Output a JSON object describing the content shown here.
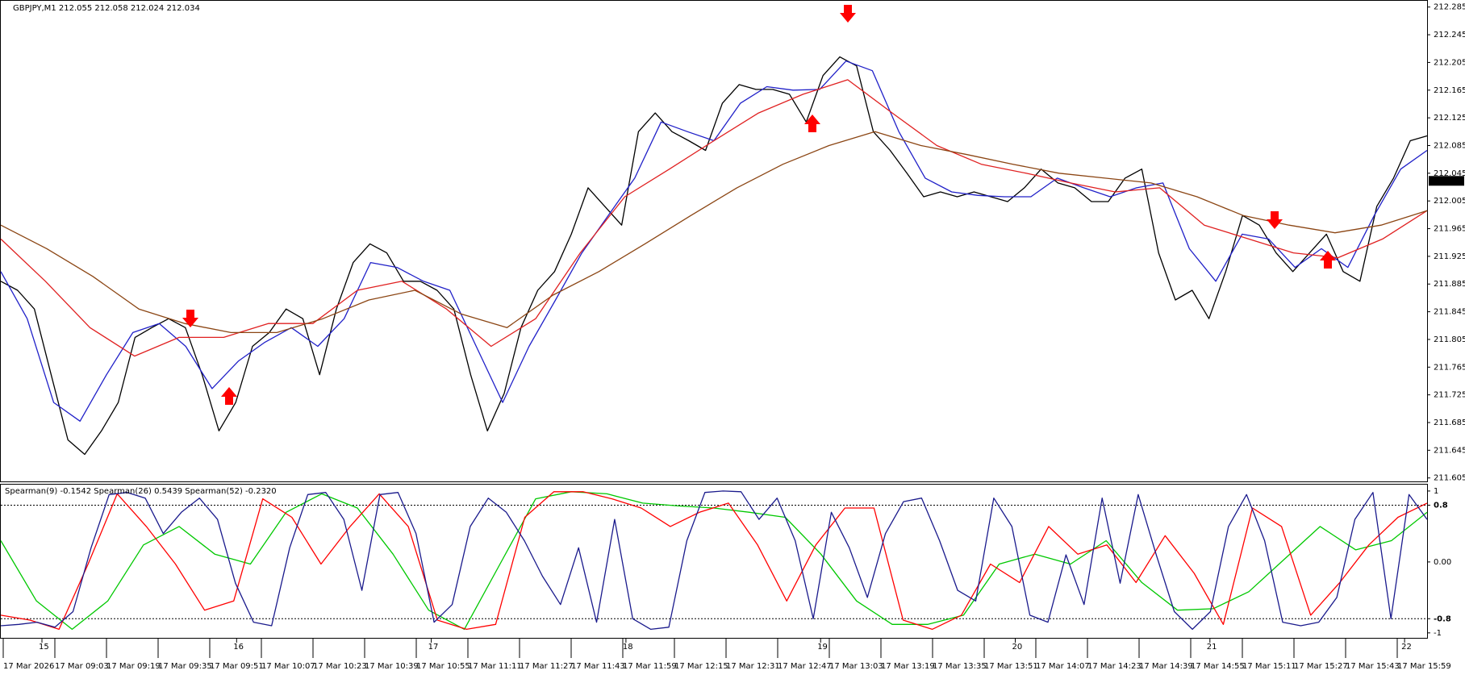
{
  "chart_data": [
    {
      "type": "line",
      "title": "GBPJPY,M1  212.055 212.058 212.024 212.034",
      "last_price": 212.034,
      "ylim": [
        211.6,
        212.294
      ],
      "yticks": [
        212.285,
        212.245,
        212.205,
        212.165,
        212.125,
        212.085,
        212.045,
        212.005,
        211.965,
        211.925,
        211.885,
        211.845,
        211.805,
        211.765,
        211.725,
        211.685,
        211.645,
        211.605
      ],
      "day_labels": [
        "15",
        "16",
        "17",
        "18",
        "19",
        "20",
        "21",
        "22"
      ],
      "time_labels": [
        "17 Mar 2026",
        "17 Mar 09:03",
        "17 Mar 09:19",
        "17 Mar 09:35",
        "17 Mar 09:51",
        "17 Mar 10:07",
        "17 Mar 10:23",
        "17 Mar 10:39",
        "17 Mar 10:55",
        "17 Mar 11:11",
        "17 Mar 11:27",
        "17 Mar 11:43",
        "17 Mar 11:59",
        "17 Mar 12:15",
        "17 Mar 12:31",
        "17 Mar 12:47",
        "17 Mar 13:03",
        "17 Mar 13:19",
        "17 Mar 13:35",
        "17 Mar 13:51",
        "17 Mar 14:07",
        "17 Mar 14:23",
        "17 Mar 14:39",
        "17 Mar 14:55",
        "17 Mar 15:11",
        "17 Mar 15:27",
        "17 Mar 15:43",
        "17 Mar 15:59"
      ],
      "series": [
        {
          "color": "#000000",
          "values": [
            211.889,
            211.876,
            211.849,
            211.754,
            211.66,
            211.639,
            211.673,
            211.714,
            211.808,
            211.822,
            211.835,
            211.822,
            211.754,
            211.673,
            211.714,
            211.795,
            211.815,
            211.849,
            211.835,
            211.754,
            211.849,
            211.916,
            211.943,
            211.93,
            211.889,
            211.889,
            211.876,
            211.849,
            211.754,
            211.673,
            211.727,
            211.822,
            211.876,
            211.903,
            211.957,
            212.024,
            211.997,
            211.97,
            212.105,
            212.132,
            212.105,
            212.092,
            212.078,
            212.146,
            212.173,
            212.166,
            212.166,
            212.159,
            212.119,
            212.186,
            212.213,
            212.2,
            212.105,
            212.078,
            212.045,
            212.011,
            212.018,
            212.011,
            212.018,
            212.011,
            212.004,
            212.024,
            212.051,
            212.031,
            212.024,
            212.004,
            212.004,
            212.038,
            212.051,
            211.93,
            211.862,
            211.876,
            211.835,
            211.903,
            211.984,
            211.97,
            211.93,
            211.903,
            211.93,
            211.957,
            211.903,
            211.889,
            211.997,
            212.038,
            212.092,
            212.099
          ]
        },
        {
          "color": "#2020c8",
          "values": [
            211.903,
            211.835,
            211.714,
            211.687,
            211.754,
            211.815,
            211.828,
            211.795,
            211.734,
            211.774,
            211.801,
            211.822,
            211.795,
            211.835,
            211.916,
            211.909,
            211.889,
            211.876,
            211.795,
            211.714,
            211.795,
            211.862,
            211.93,
            211.984,
            212.038,
            212.119,
            212.105,
            212.092,
            212.146,
            212.17,
            212.165,
            212.166,
            212.207,
            212.193,
            212.105,
            212.038,
            212.018,
            212.013,
            212.011,
            212.011,
            212.038,
            212.024,
            212.011,
            212.024,
            212.031,
            211.936,
            211.889,
            211.957,
            211.95,
            211.909,
            211.936,
            211.909,
            211.984,
            212.051,
            212.078
          ]
        },
        {
          "color": "#e02020",
          "values": [
            211.95,
            211.889,
            211.822,
            211.781,
            211.808,
            211.808,
            211.828,
            211.828,
            211.876,
            211.889,
            211.849,
            211.795,
            211.835,
            211.93,
            212.011,
            212.051,
            212.092,
            212.132,
            212.159,
            212.18,
            212.132,
            212.085,
            212.058,
            212.045,
            212.031,
            212.018,
            212.024,
            211.97,
            211.95,
            211.93,
            211.923,
            211.95,
            211.991
          ]
        },
        {
          "color": "#8b4513",
          "values": [
            211.97,
            211.936,
            211.896,
            211.849,
            211.828,
            211.815,
            211.815,
            211.835,
            211.862,
            211.876,
            211.842,
            211.822,
            211.869,
            211.903,
            211.943,
            211.984,
            212.024,
            212.058,
            212.085,
            212.105,
            212.085,
            212.072,
            212.058,
            212.045,
            212.038,
            212.031,
            212.011,
            211.984,
            211.97,
            211.959,
            211.97,
            211.991
          ]
        }
      ]
    },
    {
      "type": "line",
      "title": "Spearman(9) -0.1542  Spearman(26) 0.5439  Spearman(52) -0.2320",
      "ylim": [
        -1.07,
        1.09
      ],
      "yticks": [
        1,
        0.8,
        {
          "value": 0,
          "label": "0.00"
        },
        -0.8,
        -1
      ],
      "levels": [
        0.8,
        -0.8
      ],
      "series": [
        {
          "color": "#00c800",
          "values": [
            0.3,
            -0.55,
            -0.95,
            -0.55,
            0.24,
            0.5,
            0.11,
            -0.03,
            0.7,
            0.96,
            0.76,
            0.11,
            -0.68,
            -0.95,
            -0.03,
            0.89,
            0.99,
            0.96,
            0.83,
            0.79,
            0.76,
            0.7,
            0.63,
            0.11,
            -0.55,
            -0.88,
            -0.88,
            -0.75,
            -0.03,
            0.11,
            -0.03,
            0.3,
            -0.29,
            -0.68,
            -0.66,
            -0.42,
            0.04,
            0.5,
            0.17,
            0.3,
            0.7
          ]
        },
        {
          "color": "#ff0000",
          "values": [
            -0.75,
            -0.82,
            -0.95,
            -0.03,
            0.96,
            0.5,
            -0.03,
            -0.68,
            -0.55,
            0.89,
            0.63,
            -0.03,
            0.5,
            0.96,
            0.5,
            -0.82,
            -0.95,
            -0.88,
            0.63,
            0.99,
            0.99,
            0.89,
            0.76,
            0.5,
            0.7,
            0.83,
            0.24,
            -0.55,
            0.24,
            0.76,
            0.76,
            -0.82,
            -0.95,
            -0.75,
            -0.03,
            -0.29,
            0.5,
            0.11,
            0.24,
            -0.29,
            0.37,
            -0.16,
            -0.88,
            0.76,
            0.5,
            -0.75,
            -0.29,
            0.24,
            0.63,
            0.83
          ]
        },
        {
          "color": "#1a1a8c",
          "values": [
            -0.9,
            -0.88,
            -0.85,
            -0.92,
            -0.7,
            0.2,
            0.95,
            0.98,
            0.9,
            0.4,
            0.7,
            0.9,
            0.6,
            -0.3,
            -0.85,
            -0.9,
            0.2,
            0.95,
            0.98,
            0.6,
            -0.4,
            0.95,
            0.98,
            0.4,
            -0.85,
            -0.6,
            0.5,
            0.9,
            0.7,
            0.3,
            -0.2,
            -0.6,
            0.2,
            -0.85,
            0.6,
            -0.8,
            -0.95,
            -0.92,
            0.3,
            0.98,
            1.0,
            0.99,
            0.6,
            0.9,
            0.3,
            -0.8,
            0.7,
            0.2,
            -0.5,
            0.4,
            0.85,
            0.9,
            0.3,
            -0.4,
            -0.55,
            0.9,
            0.5,
            -0.75,
            -0.85,
            0.1,
            -0.6,
            0.9,
            -0.3,
            0.95,
            0.1,
            -0.7,
            -0.95,
            -0.7,
            0.5,
            0.95,
            0.3,
            -0.85,
            -0.9,
            -0.85,
            -0.5,
            0.6,
            0.98,
            -0.8,
            0.95,
            0.6
          ]
        }
      ]
    }
  ]
}
